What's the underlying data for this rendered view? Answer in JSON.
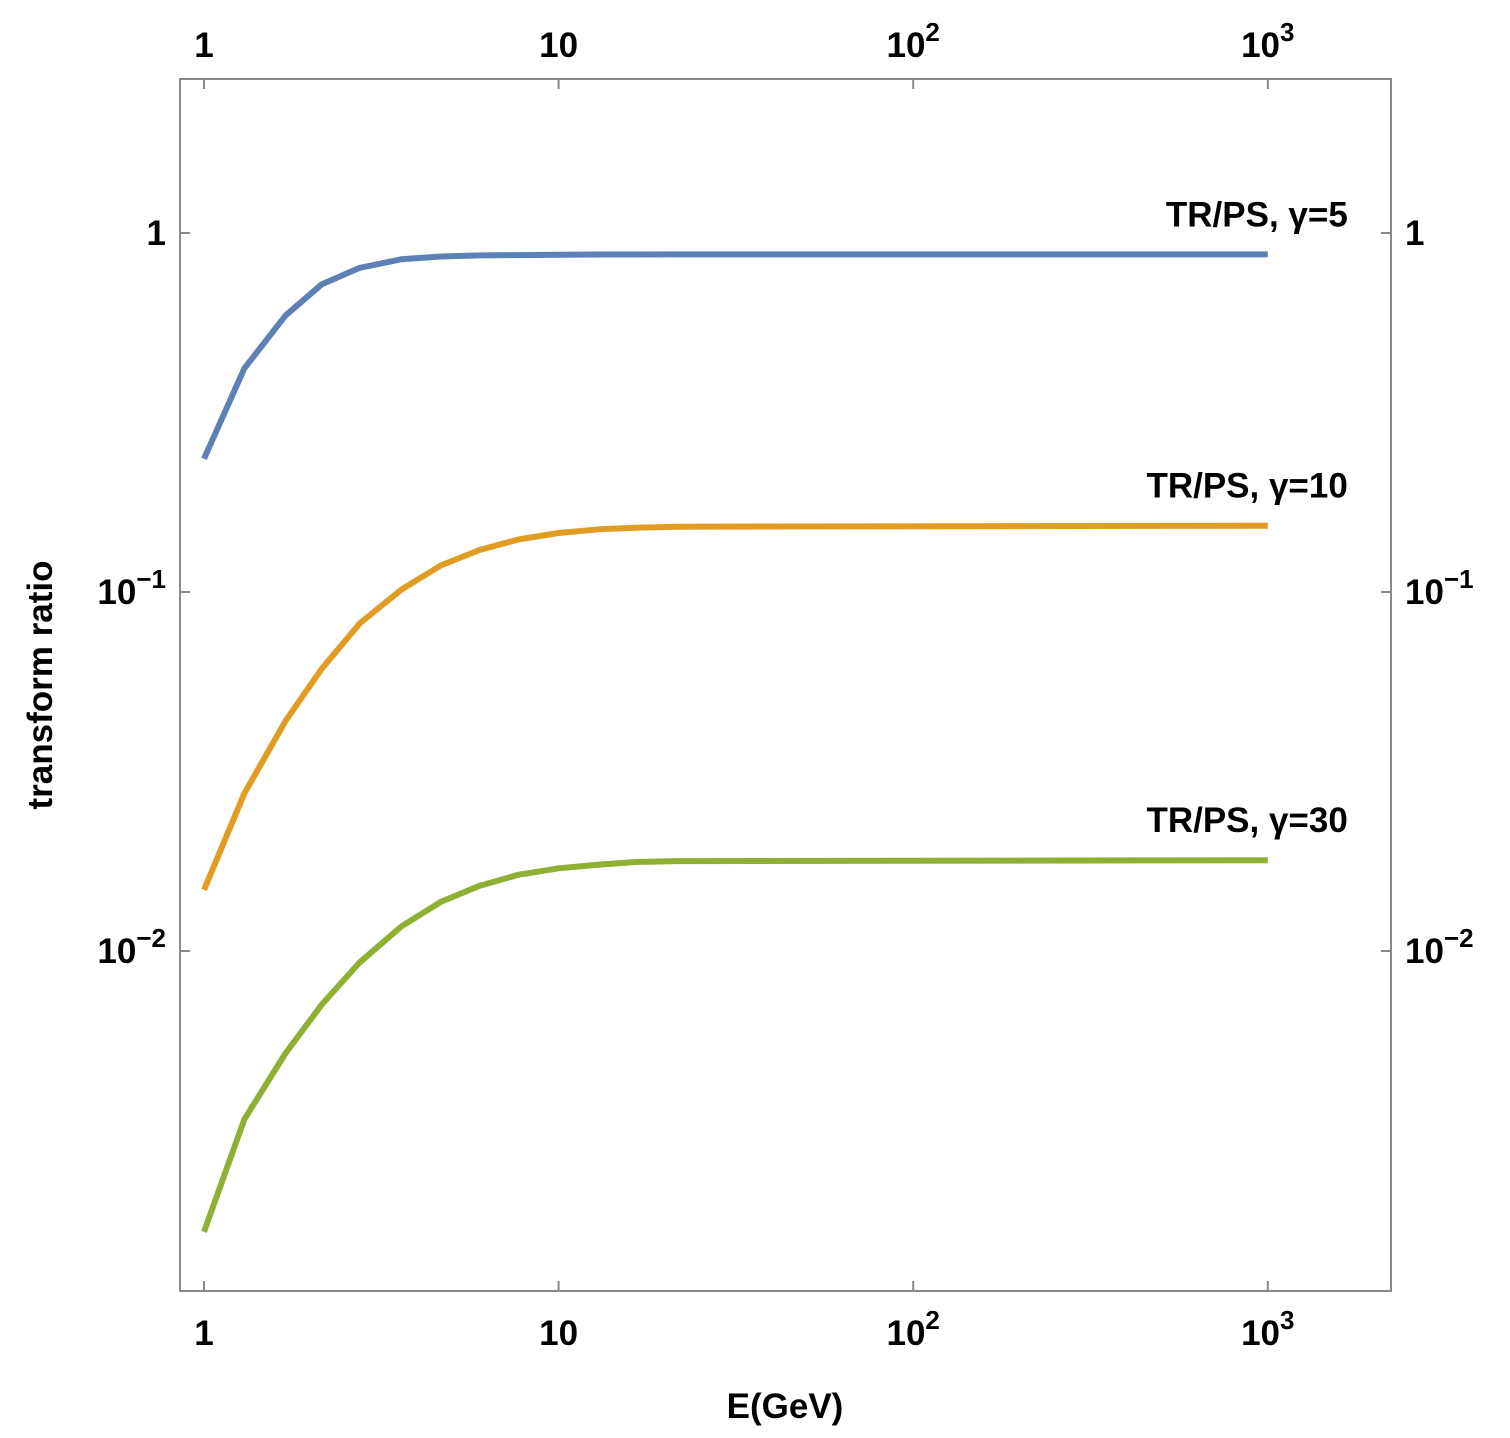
{
  "chart_data": {
    "type": "line",
    "xlabel": "E(GeV)",
    "ylabel": "transform ratio",
    "x_scale": "log",
    "y_scale": "log",
    "xlim": [
      0.8,
      2000
    ],
    "ylim": [
      0.00125,
      2.5
    ],
    "grid": false,
    "legend": "none (series labelled inline at right end of each curve)",
    "x_ticks": [
      {
        "value": 1,
        "base": "1",
        "exp": ""
      },
      {
        "value": 10,
        "base": "10",
        "exp": ""
      },
      {
        "value": 100,
        "base": "10",
        "exp": "2"
      },
      {
        "value": 1000,
        "base": "10",
        "exp": "3"
      }
    ],
    "y_ticks": [
      {
        "value": 1,
        "base": "1",
        "exp": ""
      },
      {
        "value": 0.1,
        "base": "10",
        "exp": "−1"
      },
      {
        "value": 0.01,
        "base": "10",
        "exp": "−2"
      }
    ],
    "x": [
      1.0,
      1.3,
      1.7,
      2.15,
      2.75,
      3.6,
      4.65,
      6.0,
      7.7,
      10,
      13,
      16.5,
      21.5,
      1000
    ],
    "series": [
      {
        "name": "TR/PS, γ=5",
        "color": "#5e81b5",
        "values": [
          0.235,
          0.42,
          0.59,
          0.72,
          0.8,
          0.845,
          0.86,
          0.866,
          0.868,
          0.87,
          0.871,
          0.871,
          0.872,
          0.872
        ]
      },
      {
        "name": "TR/PS, γ=10",
        "color": "#e19c24",
        "values": [
          0.0148,
          0.0275,
          0.0438,
          0.0612,
          0.0818,
          0.1015,
          0.1185,
          0.131,
          0.14,
          0.146,
          0.1495,
          0.151,
          0.152,
          0.153
        ]
      },
      {
        "name": "TR/PS, γ=30",
        "color": "#8fb032",
        "values": [
          0.00165,
          0.0034,
          0.0052,
          0.0071,
          0.0093,
          0.0117,
          0.0137,
          0.0152,
          0.0163,
          0.017,
          0.0174,
          0.0177,
          0.0178,
          0.0179
        ]
      }
    ]
  }
}
